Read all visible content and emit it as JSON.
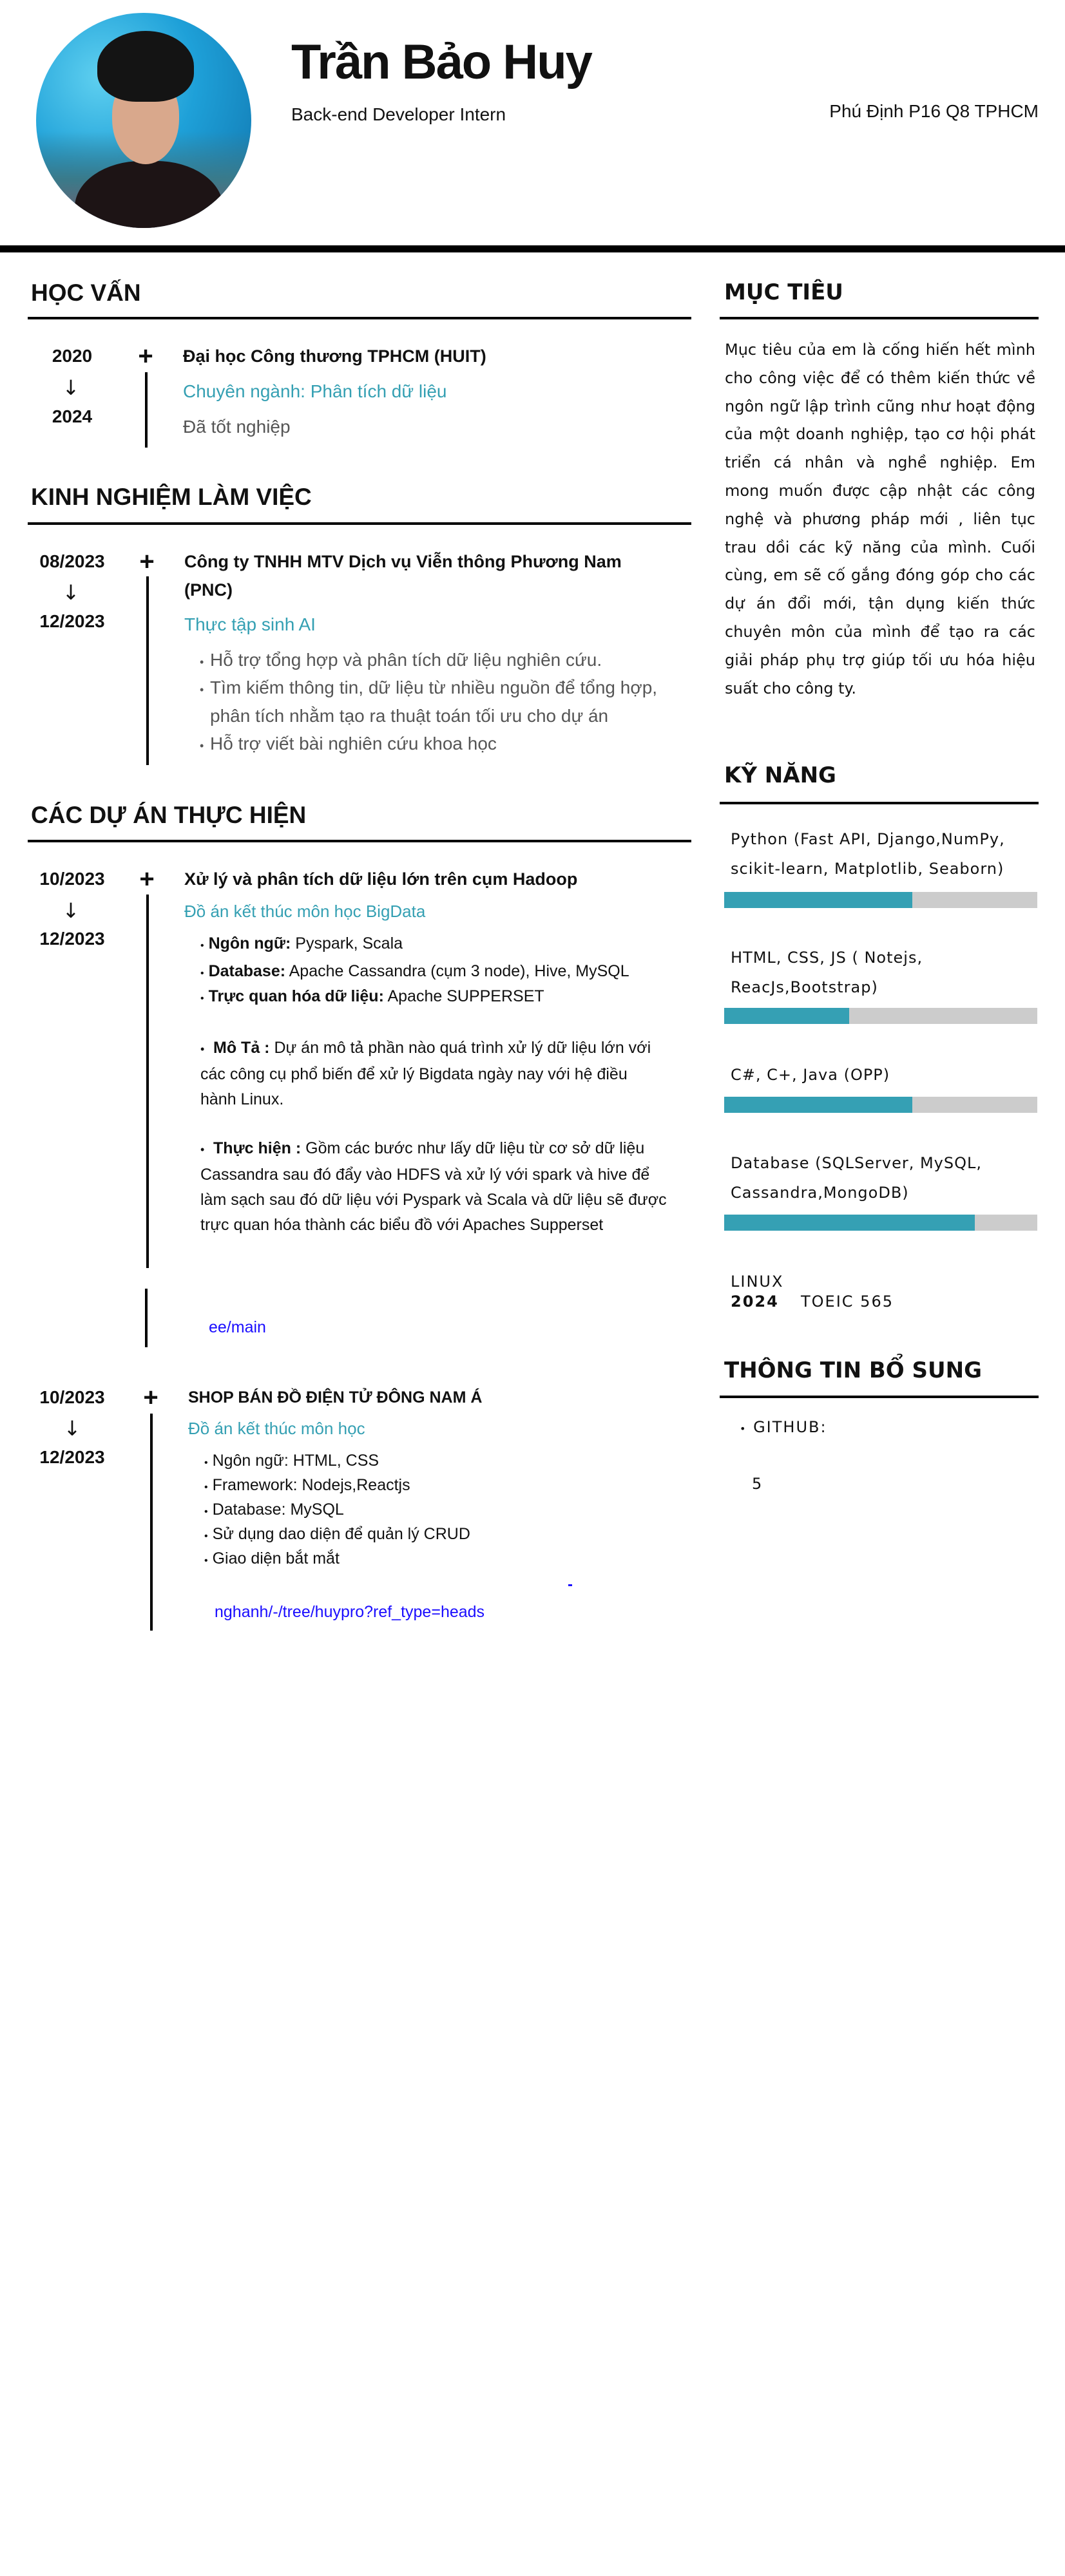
{
  "header": {
    "name": "Trần Bảo Huy",
    "title": "Back-end Developer Intern",
    "address": "Phú Định P16  Q8 TPHCM"
  },
  "education": {
    "heading": "HỌC VẤN",
    "items": [
      {
        "start": "2020",
        "end": "2024",
        "school": "Đại học Công thương TPHCM (HUIT)",
        "major": "Chuyên ngành: Phân tích dữ liệu",
        "status": "Đã tốt nghiệp"
      }
    ]
  },
  "experience": {
    "heading": "KINH NGHIỆM LÀM VIỆC",
    "items": [
      {
        "start": "08/2023",
        "end": "12/2023",
        "company_line1": "Công ty TNHH MTV Dịch vụ Viễn thông Phương Nam",
        "company_line2": "(PNC)",
        "role": "Thực tập sinh AI",
        "bullets": [
          "Hỗ trợ tổng hợp và phân tích dữ liệu nghiên cứu.",
          "Tìm kiếm thông tin, dữ liệu từ nhiều nguồn để tổng hợp,",
          "phân tích nhằm tạo ra thuật toán tối ưu cho dự án",
          "Hỗ trợ viết bài nghiên cứu khoa học"
        ]
      }
    ]
  },
  "projects": {
    "heading": "CÁC DỰ ÁN THỰC  HIỆN",
    "items": [
      {
        "start": "10/2023",
        "end": "12/2023",
        "title": "Xử lý và phân tích dữ liệu lớn trên cụm Hadoop",
        "subtitle": "Đồ án kết  thúc môn học BigData",
        "tech": [
          {
            "label": "Ngôn ngữ:",
            "value": " Pyspark, Scala"
          },
          {
            "label": "Database:",
            "value": " Apache Cassandra (cụm 3 node), Hive, MySQL"
          },
          {
            "label": "Trực quan hóa dữ liệu:",
            "value": " Apache SUPPERSET"
          }
        ],
        "description_label": "Mô Tả :",
        "description": " Dự án mô tả phần nào quá trình xử lý dữ liệu lớn với các công cụ  phổ biến để xử lý Bigdata ngày nay với hệ điều hành Linux.",
        "implementation_label": "Thực hiện :",
        "implementation": " Gồm các bước như lấy dữ liệu từ cơ sở dữ liệu Cassandra sau đó đẩy vào HDFS và xử lý với spark và hive để làm sạch sau đó dữ liệu với Pyspark và Scala và dữ liệu sẽ được trực quan hóa thành các biểu đồ với Apaches Supperset",
        "link_fragment": "ee/main"
      },
      {
        "start": "10/2023",
        "end": "12/2023",
        "title": "SHOP BÁN ĐỒ ĐIỆN TỬ ĐÔNG NAM Á",
        "subtitle": "Đồ án kết  thúc môn học",
        "bullets": [
          "Ngôn ngữ: HTML, CSS",
          "Framework: Nodejs,Reactjs",
          "Database: MySQL",
          "Sử dụng dao diện  để quản lý CRUD",
          "Giao diện bắt mắt"
        ],
        "link_fragment": "nghanh/-/tree/huypro?ref_type=heads"
      }
    ]
  },
  "objective": {
    "heading": "MỤC TIÊU",
    "text": "Mục tiêu của em là cống hiến hết mình cho công việc để có thêm kiến thức về ngôn ngữ lập trình cũng như hoạt động của một doanh nghiệp, tạo cơ hội phát triển cá nhân và nghề nghiệp. Em mong muốn được cập nhật các công nghệ và phương pháp mới , liên tục trau dồi các kỹ năng của mình. Cuối cùng, em sẽ cố gắng đóng góp cho các dự án đổi mới, tận dụng kiến thức chuyên môn của mình để tạo ra các giải pháp phụ trợ giúp tối ưu hóa hiệu suất cho công ty."
  },
  "skills": {
    "heading": "KỸ NĂNG",
    "items": [
      {
        "label": "Python (Fast API, Django,NumPy, scikit-learn, Matplotlib, Seaborn)",
        "level": 0.6
      },
      {
        "label": "HTML, CSS, JS ( Notejs, ReacJs,Bootstrap)",
        "level": 0.4
      },
      {
        "label": "C#, C+, Java (OPP)",
        "level": 0.6
      },
      {
        "label": "Database (SQLServer, MySQL, Cassandra,MongoDB)",
        "level": 0.8
      }
    ],
    "linux": "LINUX",
    "year": "2024",
    "toeic": "TOEIC 565"
  },
  "additional": {
    "heading": "THÔNG TIN BỔ SUNG",
    "github_label": "GITHUB:",
    "fragment": "5"
  },
  "symbols": {
    "plus": "+",
    "arrow_down": "↓",
    "bullet": "•"
  },
  "colors": {
    "accent_teal": "#35a0b3",
    "bar_track": "#cccccc",
    "link_blue": "#1a0dff",
    "text": "#111111",
    "muted": "#555555"
  }
}
